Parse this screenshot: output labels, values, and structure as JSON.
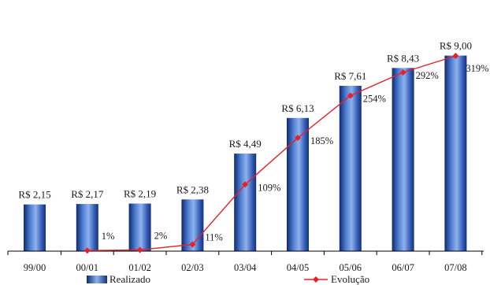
{
  "chart_data": {
    "type": "bar",
    "categories": [
      "99/00",
      "00/01",
      "01/02",
      "02/03",
      "03/04",
      "04/05",
      "05/06",
      "06/07",
      "07/08"
    ],
    "series": [
      {
        "name": "Realizado",
        "type": "bar",
        "values": [
          2.15,
          2.17,
          2.19,
          2.38,
          4.49,
          6.13,
          7.61,
          8.43,
          9.0
        ],
        "labels": [
          "R$ 2,15",
          "R$ 2,17",
          "R$ 2,19",
          "R$ 2,38",
          "R$ 4,49",
          "R$ 6,13",
          "R$ 7,61",
          "R$ 8,43",
          "R$ 9,00"
        ],
        "color": "#2d52a8"
      },
      {
        "name": "Evolução",
        "type": "line",
        "values": [
          null,
          1,
          2,
          11,
          109,
          185,
          254,
          292,
          319
        ],
        "labels": [
          "",
          "1%",
          "2%",
          "11%",
          "109%",
          "185%",
          "254%",
          "292%",
          "319%"
        ],
        "color": "#e8202a"
      }
    ],
    "ylim": [
      0,
      10
    ],
    "y2lim": [
      0,
      350
    ],
    "legend": "bottom",
    "grid": false
  }
}
